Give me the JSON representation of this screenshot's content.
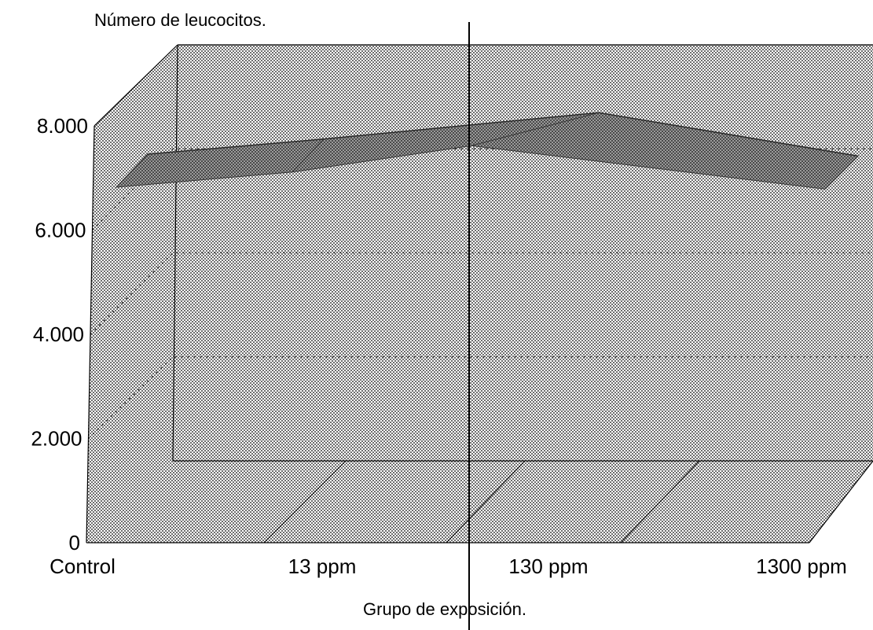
{
  "colors": {
    "background": "#ffffff",
    "walls": "#c8c8c8",
    "ribbon": "#8a8a8a",
    "ink": "#000000"
  },
  "chart_data": {
    "type": "area",
    "title": "",
    "ylabel": "Número de leucocitos.",
    "xlabel": "Grupo de exposición.",
    "categories": [
      "Control",
      "13 ppm",
      "130 ppm",
      "1300 ppm"
    ],
    "yticks": [
      "0",
      "2.000",
      "4.000",
      "6.000",
      "8.000"
    ],
    "ytick_values": [
      0,
      2000,
      4000,
      6000,
      8000
    ],
    "ylim": [
      0,
      8000
    ],
    "grid": true,
    "legend": "none",
    "three_d": true,
    "series": [
      {
        "values": [
          6850,
          7250,
          7950,
          6800
        ]
      }
    ]
  }
}
